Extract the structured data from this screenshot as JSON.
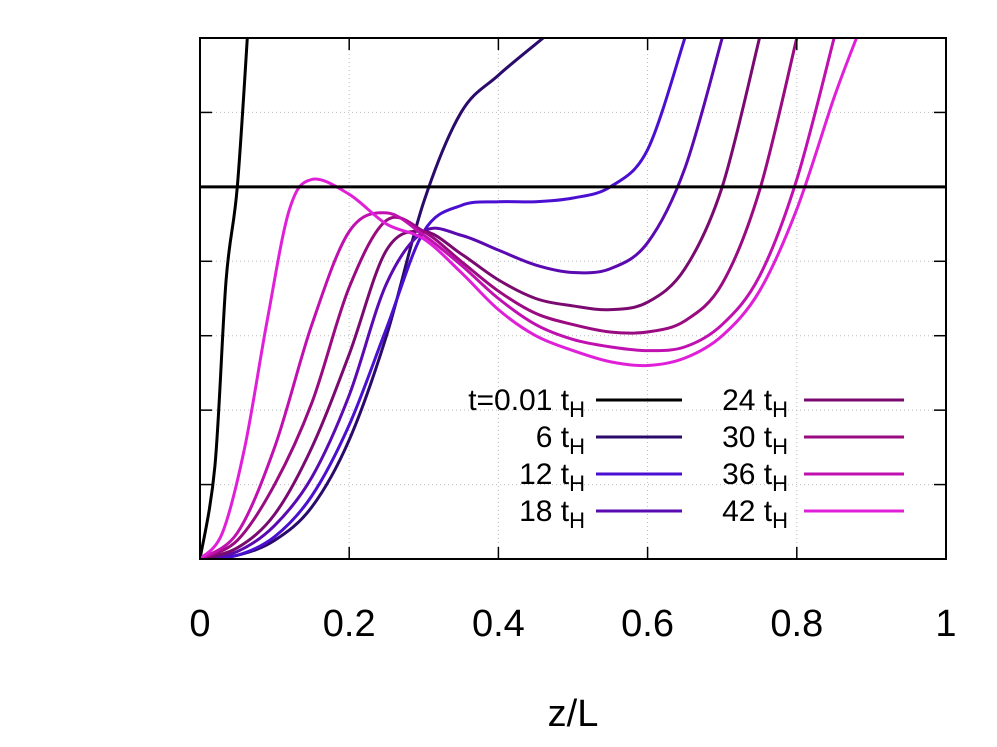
{
  "chart_data": {
    "type": "line",
    "title": "",
    "xlabel": "z/L",
    "ylabel": "",
    "xlim": [
      0,
      1
    ],
    "ylim": [
      0,
      1.4
    ],
    "x_ticks": [
      0,
      0.2,
      0.4,
      0.6,
      0.8,
      1
    ],
    "x_tick_labels": [
      "0",
      "0.2",
      "0.4",
      "0.6",
      "0.8",
      "1"
    ],
    "y_ticks": [
      0,
      0.2,
      0.4,
      0.6,
      0.8,
      1.0,
      1.2,
      1.4
    ],
    "y_tick_labels": [],
    "grid": true,
    "legend": {
      "placement": "bottom-right",
      "columns": 2,
      "subscript": "H"
    },
    "series": [
      {
        "name": "t=0.01 t",
        "color": "#000000",
        "x": [
          0,
          0.02,
          0.035,
          0.05,
          0.065
        ],
        "y": [
          0,
          0.25,
          0.75,
          1.0,
          1.45
        ]
      },
      {
        "name": "6 t",
        "color": "#2a0a6a",
        "x": [
          0,
          0.05,
          0.1,
          0.15,
          0.2,
          0.25,
          0.3,
          0.35,
          0.4,
          0.46
        ],
        "y": [
          0,
          0.01,
          0.05,
          0.14,
          0.32,
          0.6,
          0.96,
          1.2,
          1.3,
          1.4
        ]
      },
      {
        "name": "12 t",
        "color": "#4a0fd0",
        "x": [
          0,
          0.05,
          0.1,
          0.15,
          0.2,
          0.25,
          0.3,
          0.35,
          0.4,
          0.45,
          0.5,
          0.55,
          0.6,
          0.65
        ],
        "y": [
          0,
          0.01,
          0.06,
          0.17,
          0.36,
          0.62,
          0.88,
          0.95,
          0.96,
          0.96,
          0.97,
          1.0,
          1.1,
          1.4
        ]
      },
      {
        "name": "18 t",
        "color": "#5a0ab0",
        "x": [
          0,
          0.05,
          0.1,
          0.15,
          0.2,
          0.25,
          0.3,
          0.35,
          0.4,
          0.45,
          0.5,
          0.55,
          0.6,
          0.65,
          0.7
        ],
        "y": [
          0,
          0.02,
          0.09,
          0.22,
          0.44,
          0.74,
          0.88,
          0.87,
          0.83,
          0.79,
          0.77,
          0.78,
          0.85,
          1.05,
          1.4
        ]
      },
      {
        "name": "24 t",
        "color": "#7a0a70",
        "x": [
          0,
          0.05,
          0.1,
          0.15,
          0.2,
          0.25,
          0.3,
          0.35,
          0.4,
          0.45,
          0.5,
          0.55,
          0.6,
          0.65,
          0.7,
          0.75
        ],
        "y": [
          0,
          0.03,
          0.12,
          0.3,
          0.55,
          0.83,
          0.88,
          0.82,
          0.75,
          0.7,
          0.68,
          0.67,
          0.69,
          0.78,
          1.0,
          1.4
        ]
      },
      {
        "name": "30 t",
        "color": "#9a0a80",
        "x": [
          0,
          0.05,
          0.1,
          0.15,
          0.2,
          0.25,
          0.3,
          0.35,
          0.4,
          0.45,
          0.5,
          0.55,
          0.6,
          0.65,
          0.7,
          0.75,
          0.8
        ],
        "y": [
          0,
          0.05,
          0.2,
          0.42,
          0.73,
          0.91,
          0.88,
          0.8,
          0.72,
          0.66,
          0.63,
          0.61,
          0.61,
          0.64,
          0.74,
          0.99,
          1.4
        ]
      },
      {
        "name": "36 t",
        "color": "#c010b0",
        "x": [
          0,
          0.05,
          0.1,
          0.15,
          0.2,
          0.25,
          0.3,
          0.35,
          0.4,
          0.45,
          0.5,
          0.55,
          0.6,
          0.65,
          0.7,
          0.75,
          0.8,
          0.85
        ],
        "y": [
          0,
          0.07,
          0.3,
          0.63,
          0.88,
          0.93,
          0.87,
          0.79,
          0.7,
          0.63,
          0.59,
          0.57,
          0.56,
          0.57,
          0.63,
          0.76,
          1.02,
          1.4
        ]
      },
      {
        "name": "42 t",
        "color": "#e020d8",
        "x": [
          0,
          0.03,
          0.06,
          0.09,
          0.12,
          0.15,
          0.2,
          0.25,
          0.3,
          0.35,
          0.4,
          0.45,
          0.5,
          0.55,
          0.6,
          0.65,
          0.7,
          0.75,
          0.8,
          0.85,
          0.88
        ],
        "y": [
          0,
          0.07,
          0.3,
          0.64,
          0.94,
          1.02,
          0.98,
          0.9,
          0.86,
          0.77,
          0.67,
          0.6,
          0.56,
          0.53,
          0.52,
          0.54,
          0.6,
          0.72,
          0.94,
          1.24,
          1.4
        ]
      }
    ],
    "reference_lines": [
      {
        "orientation": "horizontal",
        "y": 1.0,
        "color": "#000000"
      }
    ]
  }
}
